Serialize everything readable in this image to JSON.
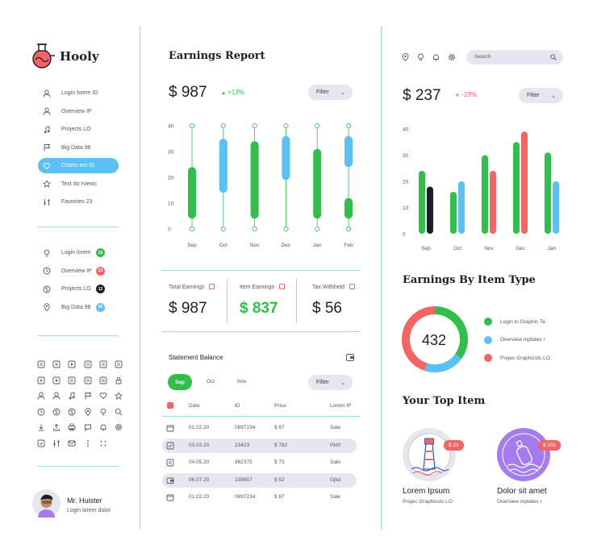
{
  "app": {
    "name": "Hooly"
  },
  "sidebar": {
    "nav": [
      {
        "label": "Login lorem ID",
        "icon": "user-icon"
      },
      {
        "label": "Overview IP",
        "icon": "user-icon"
      },
      {
        "label": "Projects LO",
        "icon": "music-icon"
      },
      {
        "label": "Big Data 98",
        "icon": "flag-icon"
      },
      {
        "label": "Charts em ID",
        "icon": "heart-icon",
        "active": true
      },
      {
        "label": "Text do rviewc",
        "icon": "star-icon"
      },
      {
        "label": "Favorites 23",
        "icon": "sliders-icon"
      }
    ],
    "nav2": [
      {
        "label": "Login lorem",
        "icon": "bulb-icon",
        "badge": "25",
        "badge_color": "#2fbf4a"
      },
      {
        "label": "Overview IP",
        "icon": "clock-icon",
        "badge": "23",
        "badge_color": "#f36565"
      },
      {
        "label": "Projects LO",
        "icon": "dollar-icon",
        "badge": "12",
        "badge_color": "#1d1d2c"
      },
      {
        "label": "Big Data 98",
        "icon": "pin-icon",
        "badge": "65",
        "badge_color": "#5bc0f5"
      }
    ],
    "user": {
      "name": "Mr. Huister",
      "subtitle": "Login lorem dolor"
    }
  },
  "earnings": {
    "title": "Earnings Report",
    "value": "$ 987",
    "change": "+13%",
    "filter_label": "Filter",
    "stats": [
      {
        "label": "Total Earnings",
        "value": "$ 987",
        "color": "#1d1d2c"
      },
      {
        "label": "Item Earnings",
        "value": "$ 837",
        "color": "#2fbf4a"
      },
      {
        "label": "Tax Withheld",
        "value": "$ 56",
        "color": "#1d1d2c"
      }
    ]
  },
  "statement": {
    "title": "Statement Balance",
    "tabs": [
      "Sep",
      "Oct",
      "Nov"
    ],
    "filter_label": "Filter",
    "headers": [
      "Date",
      "ID",
      "Price",
      "Lorem IP"
    ],
    "rows": [
      {
        "date": "01.02.20",
        "id": "0897234",
        "price": "$ 87",
        "note": "Sale"
      },
      {
        "date": "03.03.20",
        "id": "23423",
        "price": "$ 782",
        "note": "Pkhf"
      },
      {
        "date": "04.05.20",
        "id": "982375",
        "price": "$ 73",
        "note": "Sale"
      },
      {
        "date": "06.07.20",
        "id": "239857",
        "price": "$ 52",
        "note": "Gjkd"
      },
      {
        "date": "01.02.20",
        "id": "0897234",
        "price": "$ 87",
        "note": "Sale"
      }
    ]
  },
  "right": {
    "search_placeholder": "Search",
    "value": "$ 237",
    "change": "-23%",
    "filter_label": "Filter",
    "item_type_title": "Earnings By Item Type",
    "donut_value": "432",
    "legend": [
      {
        "label": "Login lo Graphic Te",
        "color": "#2fbf4a"
      },
      {
        "label": "Overview mplates r",
        "color": "#5bc0f5"
      },
      {
        "label": "Projec Graphicsts LO",
        "color": "#f36565"
      }
    ],
    "top_item_title": "Your Top Item",
    "items": [
      {
        "name": "Lorem Ipsum",
        "subtitle": "Projec Graphicsts LO",
        "price": "$ 23"
      },
      {
        "name": "Dolor sit amet",
        "subtitle": "Overview mplates r",
        "price": "$ 101"
      }
    ]
  },
  "chart_data": [
    {
      "type": "candlestick",
      "categories": [
        "Sep",
        "Oct",
        "Nov",
        "Dec",
        "Jan",
        "Feb"
      ],
      "yticks": [
        "40",
        "30",
        "20",
        "10",
        "0"
      ],
      "ylim": [
        0,
        40
      ],
      "series": [
        {
          "color": "#2fbf4a",
          "values": [
            [
              4,
              24
            ],
            null,
            [
              4,
              34
            ],
            null,
            [
              4,
              31
            ],
            [
              4,
              12
            ]
          ]
        },
        {
          "color": "#5bc0f5",
          "values": [
            null,
            [
              14,
              35
            ],
            null,
            [
              19,
              36
            ],
            null,
            [
              24,
              36
            ]
          ]
        }
      ]
    },
    {
      "type": "bar",
      "categories": [
        "Sep",
        "Oct",
        "Nov",
        "Dec",
        "Jan"
      ],
      "yticks": [
        "40",
        "30",
        "20",
        "10",
        "0"
      ],
      "ylim": [
        0,
        40
      ],
      "series": [
        {
          "color": "#2fbf4a",
          "values": [
            24,
            16,
            30,
            35,
            31
          ]
        },
        {
          "color": "#1d1d2c",
          "values": [
            18,
            null,
            null,
            null,
            null
          ]
        },
        {
          "color": "#5bc0f5",
          "values": [
            null,
            20,
            null,
            null,
            20
          ]
        },
        {
          "color": "#f36565",
          "values": [
            null,
            null,
            24,
            39,
            null
          ]
        }
      ]
    },
    {
      "type": "pie",
      "values": [
        35,
        20,
        45
      ],
      "colors": [
        "#2fbf4a",
        "#5bc0f5",
        "#f36565"
      ]
    }
  ]
}
